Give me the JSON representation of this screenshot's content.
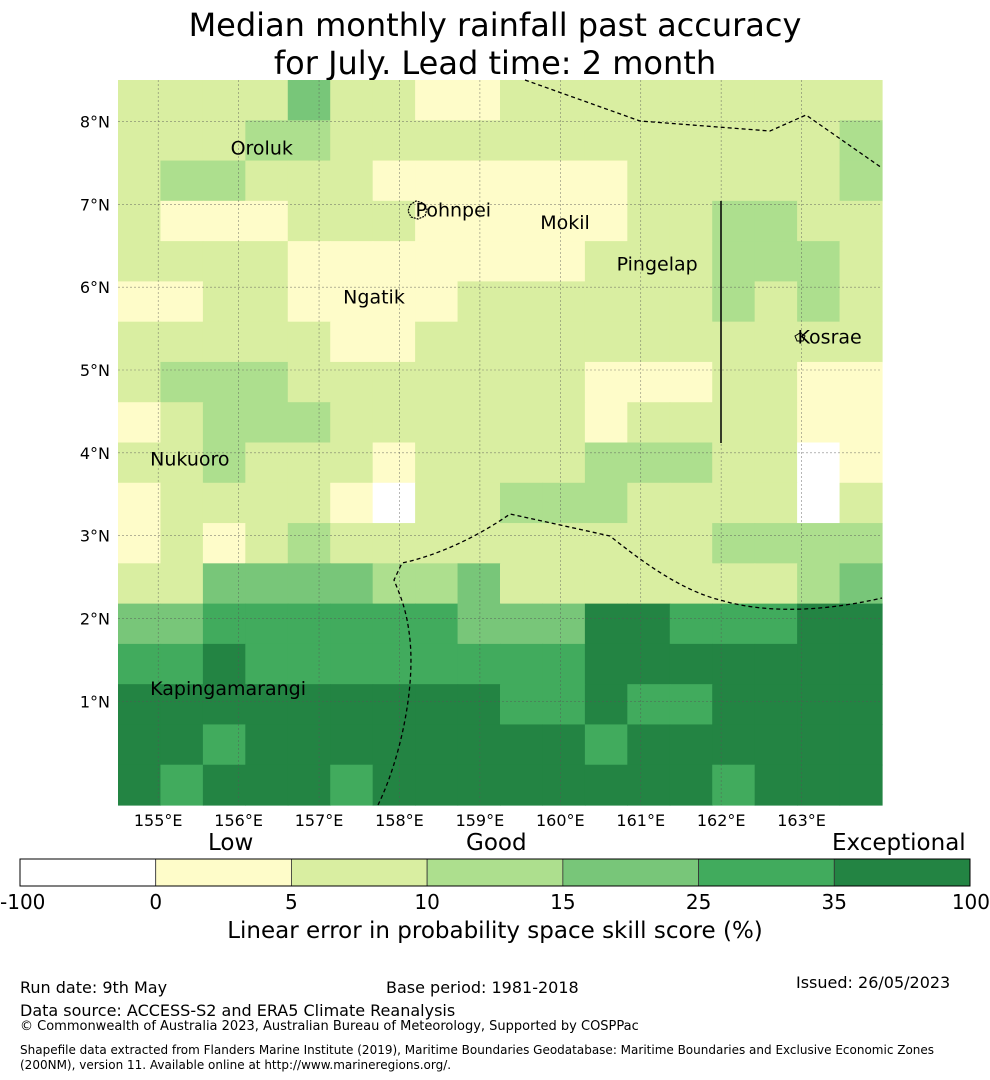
{
  "title": {
    "line1": "Median monthly rainfall past accuracy",
    "line2": "for July. Lead time: 2 month"
  },
  "map": {
    "lon_range": [
      154.5,
      164.0
    ],
    "lat_range": [
      -0.25,
      8.5
    ],
    "lon_ticks": [
      "155°E",
      "156°E",
      "157°E",
      "158°E",
      "159°E",
      "160°E",
      "161°E",
      "162°E",
      "163°E"
    ],
    "lat_ticks": [
      "1°N",
      "2°N",
      "3°N",
      "4°N",
      "5°N",
      "6°N",
      "7°N",
      "8°N"
    ],
    "grid": true,
    "places": [
      {
        "name": "Oroluk",
        "lon": 155.9,
        "lat": 7.6
      },
      {
        "name": "Pohnpei",
        "lon": 158.2,
        "lat": 6.85
      },
      {
        "name": "Mokil",
        "lon": 159.75,
        "lat": 6.7
      },
      {
        "name": "Pingelap",
        "lon": 160.7,
        "lat": 6.2
      },
      {
        "name": "Ngatik",
        "lon": 157.3,
        "lat": 5.8
      },
      {
        "name": "Kosrae",
        "lon": 162.95,
        "lat": 5.32
      },
      {
        "name": "Nukuoro",
        "lon": 154.9,
        "lat": 3.85
      },
      {
        "name": "Kapingamarangi",
        "lon": 154.9,
        "lat": 1.08
      }
    ],
    "skill_grid_rows_north_to_south": [
      [
        2,
        2,
        2,
        2,
        4,
        2,
        2,
        1,
        1,
        2,
        2,
        2,
        2,
        2,
        2,
        2,
        2,
        2
      ],
      [
        2,
        2,
        2,
        3,
        3,
        2,
        2,
        2,
        2,
        2,
        2,
        2,
        2,
        2,
        2,
        2,
        2,
        3
      ],
      [
        2,
        3,
        3,
        2,
        2,
        2,
        1,
        1,
        1,
        1,
        1,
        1,
        2,
        2,
        2,
        2,
        2,
        3
      ],
      [
        2,
        1,
        1,
        1,
        2,
        2,
        2,
        1,
        1,
        1,
        1,
        1,
        2,
        2,
        3,
        3,
        2,
        2
      ],
      [
        2,
        2,
        2,
        2,
        1,
        1,
        1,
        1,
        1,
        1,
        1,
        2,
        2,
        2,
        3,
        3,
        3,
        2
      ],
      [
        1,
        1,
        2,
        2,
        1,
        1,
        1,
        1,
        2,
        2,
        2,
        2,
        2,
        2,
        3,
        2,
        3,
        2
      ],
      [
        2,
        2,
        2,
        2,
        2,
        1,
        1,
        2,
        2,
        2,
        2,
        2,
        2,
        2,
        2,
        2,
        2,
        2
      ],
      [
        2,
        3,
        3,
        3,
        2,
        2,
        2,
        2,
        2,
        2,
        2,
        1,
        1,
        1,
        2,
        2,
        1,
        1
      ],
      [
        1,
        2,
        3,
        3,
        3,
        2,
        2,
        2,
        2,
        2,
        2,
        1,
        2,
        2,
        2,
        2,
        1,
        1
      ],
      [
        2,
        2,
        3,
        2,
        2,
        2,
        1,
        2,
        2,
        2,
        2,
        3,
        3,
        3,
        2,
        2,
        0,
        1
      ],
      [
        1,
        2,
        2,
        2,
        2,
        1,
        0,
        2,
        2,
        3,
        3,
        3,
        2,
        2,
        2,
        2,
        0,
        2
      ],
      [
        1,
        2,
        1,
        2,
        3,
        2,
        2,
        2,
        2,
        2,
        2,
        2,
        2,
        2,
        3,
        3,
        3,
        3
      ],
      [
        2,
        2,
        4,
        4,
        4,
        4,
        3,
        3,
        4,
        2,
        2,
        2,
        2,
        2,
        2,
        2,
        3,
        4
      ],
      [
        4,
        4,
        5,
        5,
        5,
        5,
        5,
        5,
        4,
        4,
        4,
        6,
        6,
        5,
        5,
        5,
        6,
        6
      ],
      [
        5,
        5,
        6,
        5,
        5,
        5,
        5,
        5,
        5,
        5,
        5,
        6,
        6,
        6,
        6,
        6,
        6,
        6
      ],
      [
        6,
        6,
        6,
        6,
        6,
        6,
        6,
        6,
        6,
        5,
        5,
        6,
        5,
        5,
        6,
        6,
        6,
        6
      ],
      [
        6,
        6,
        5,
        6,
        6,
        6,
        6,
        6,
        6,
        6,
        6,
        5,
        6,
        6,
        6,
        6,
        6,
        6
      ],
      [
        6,
        5,
        6,
        6,
        6,
        5,
        6,
        6,
        6,
        6,
        6,
        6,
        6,
        6,
        5,
        6,
        6,
        6
      ]
    ]
  },
  "colorbar": {
    "headings": {
      "low": "Low",
      "good": "Good",
      "exceptional": "Exceptional"
    },
    "ticks": [
      "-100",
      "0",
      "5",
      "10",
      "15",
      "25",
      "35",
      "100"
    ],
    "colors": [
      "#ffffff",
      "#fefcc9",
      "#d9eea1",
      "#addf8e",
      "#78c679",
      "#41ab5d",
      "#238443"
    ],
    "label": "Linear error in probability space skill score (%)"
  },
  "footer": {
    "run_date": "Run date: 9th May",
    "base_period": "Base period: 1981-2018",
    "issued": "Issued: 26/05/2023",
    "data_source": "Data source: ACCESS-S2 and ERA5 Climate Reanalysis",
    "copyright": "© Commonwealth of Australia 2023, Australian Bureau of Meteorology, Supported by COSPPac",
    "shapefile_line1": "Shapefile data extracted from Flanders Marine Institute (2019), Maritime Boundaries Geodatabase: Maritime Boundaries and Exclusive Economic Zones",
    "shapefile_line2": "(200NM), version 11. Available online at http://www.marineregions.org/."
  }
}
